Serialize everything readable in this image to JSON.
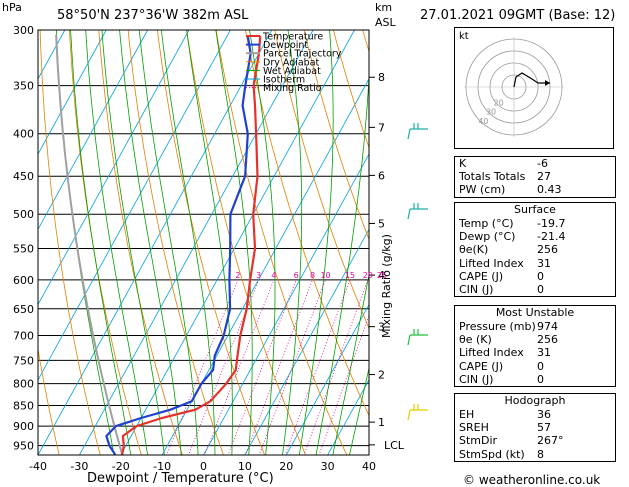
{
  "header": {
    "hpa": "hPa",
    "location": "58°50'N  237°36'W  382m  ASL",
    "km": "km",
    "asl": "ASL",
    "datetime": "27.01.2021  09GMT  (Base: 12)"
  },
  "chart_data": {
    "type": "skew-t",
    "xlabel": "Dewpoint / Temperature (°C)",
    "ylabel_right": "Mixing Ratio (g/kg)",
    "xlim": [
      -40,
      40
    ],
    "ylim_hpa": [
      975,
      300
    ],
    "x_ticks": [
      "-40",
      "-30",
      "-20",
      "-10",
      "0",
      "10",
      "20",
      "30",
      "40"
    ],
    "pressure_levels": [
      "300",
      "350",
      "400",
      "450",
      "500",
      "550",
      "600",
      "650",
      "700",
      "750",
      "800",
      "850",
      "900",
      "950"
    ],
    "km_ticks": [
      {
        "km": "8",
        "p": 342
      },
      {
        "km": "7",
        "p": 393
      },
      {
        "km": "6",
        "p": 449
      },
      {
        "km": "5",
        "p": 513
      },
      {
        "km": "4",
        "p": 592
      },
      {
        "km": "3",
        "p": 683
      },
      {
        "km": "2",
        "p": 780
      },
      {
        "km": "1",
        "p": 890
      }
    ],
    "lcl_label": "LCL",
    "lcl_p": 948,
    "mixing_ratio_labels": [
      "2",
      "3",
      "4",
      "6",
      "8",
      "10",
      "15",
      "20",
      "25"
    ],
    "legend": [
      "Temperature",
      "Dewpoint",
      "Parcel Trajectory",
      "Dry Adiabat",
      "Wet Adiabat",
      "Isotherm",
      "Mixing Ratio"
    ],
    "series": [
      {
        "name": "Temperature",
        "points": [
          [
            974,
            -19.7
          ],
          [
            950,
            -20.5
          ],
          [
            925,
            -22
          ],
          [
            900,
            -20
          ],
          [
            880,
            -15
          ],
          [
            860,
            -8
          ],
          [
            840,
            -5.5
          ],
          [
            800,
            -4
          ],
          [
            770,
            -3.5
          ],
          [
            740,
            -5
          ],
          [
            700,
            -7
          ],
          [
            650,
            -9
          ],
          [
            600,
            -12
          ],
          [
            550,
            -15
          ],
          [
            500,
            -20
          ],
          [
            450,
            -24
          ],
          [
            400,
            -30
          ],
          [
            370,
            -34
          ],
          [
            350,
            -37
          ],
          [
            320,
            -40
          ],
          [
            305,
            -42
          ]
        ]
      },
      {
        "name": "Dewpoint",
        "points": [
          [
            974,
            -21.4
          ],
          [
            950,
            -24
          ],
          [
            925,
            -26
          ],
          [
            900,
            -25
          ],
          [
            880,
            -20
          ],
          [
            860,
            -14
          ],
          [
            840,
            -10
          ],
          [
            800,
            -10
          ],
          [
            770,
            -9
          ],
          [
            740,
            -10.5
          ],
          [
            700,
            -11
          ],
          [
            650,
            -13
          ],
          [
            600,
            -17
          ],
          [
            550,
            -21
          ],
          [
            500,
            -25.5
          ],
          [
            450,
            -27
          ],
          [
            400,
            -32
          ],
          [
            370,
            -37
          ],
          [
            350,
            -39
          ],
          [
            320,
            -42
          ],
          [
            305,
            -45
          ]
        ]
      }
    ]
  },
  "hodograph": {
    "label": "kt",
    "rings": [
      "20",
      "30",
      "40"
    ]
  },
  "indices": [
    {
      "label": "K",
      "value": "-6"
    },
    {
      "label": "Totals Totals",
      "value": "27"
    },
    {
      "label": "PW (cm)",
      "value": "0.43"
    }
  ],
  "surface": {
    "title": "Surface",
    "rows": [
      {
        "label": "Temp (°C)",
        "value": "-19.7"
      },
      {
        "label": "Dewp (°C)",
        "value": "-21.4"
      },
      {
        "label": "θe(K)",
        "value": "256"
      },
      {
        "label": "Lifted Index",
        "value": "31"
      },
      {
        "label": "CAPE (J)",
        "value": "0"
      },
      {
        "label": "CIN (J)",
        "value": "0"
      }
    ]
  },
  "most_unstable": {
    "title": "Most Unstable",
    "rows": [
      {
        "label": "Pressure (mb)",
        "value": "974"
      },
      {
        "label": "θe (K)",
        "value": "256"
      },
      {
        "label": "Lifted Index",
        "value": "31"
      },
      {
        "label": "CAPE (J)",
        "value": "0"
      },
      {
        "label": "CIN (J)",
        "value": "0"
      }
    ]
  },
  "hodograph_table": {
    "title": "Hodograph",
    "rows": [
      {
        "label": "EH",
        "value": "36"
      },
      {
        "label": "SREH",
        "value": "57"
      },
      {
        "label": "StmDir",
        "value": "267°"
      },
      {
        "label": "StmSpd (kt)",
        "value": "8"
      }
    ]
  },
  "footer": {
    "copyright": "© weatheronline.co.uk"
  },
  "colors": {
    "temperature": "#e8302a",
    "dewpoint": "#2040d0",
    "parcel": "#a0a0a0",
    "dry": "#e08000",
    "wet": "#00a000",
    "isotherm": "#00a0e0",
    "mixing": "#e000a0"
  }
}
